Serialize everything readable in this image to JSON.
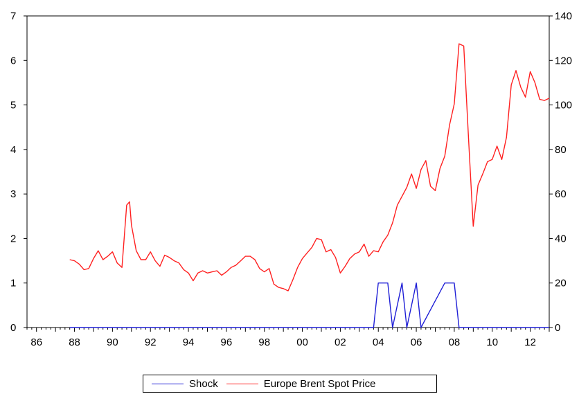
{
  "chart_data": {
    "type": "line",
    "title": "",
    "xlabel": "",
    "ylabel_left": "",
    "ylabel_right": "",
    "x_range": [
      1985.5,
      2013.0
    ],
    "x_tick_labels": [
      "86",
      "88",
      "90",
      "92",
      "94",
      "96",
      "98",
      "00",
      "02",
      "04",
      "06",
      "08",
      "10",
      "12"
    ],
    "x_tick_years": [
      1986,
      1988,
      1990,
      1992,
      1994,
      1996,
      1998,
      2000,
      2002,
      2004,
      2006,
      2008,
      2010,
      2012
    ],
    "y_left": {
      "ticks": [
        "0",
        "1",
        "2",
        "3",
        "4",
        "5",
        "6",
        "7"
      ],
      "range": [
        0,
        7
      ]
    },
    "y_right": {
      "ticks": [
        "0",
        "20",
        "40",
        "60",
        "80",
        "100",
        "120",
        "140"
      ],
      "range": [
        0,
        140
      ]
    },
    "grid": false,
    "legend_position": "bottom-center",
    "series": [
      {
        "name": "Shock",
        "axis": "left",
        "color": "#1f1fd6",
        "points": [
          [
            1987.75,
            0
          ],
          [
            2003.75,
            0
          ],
          [
            2004.0,
            1
          ],
          [
            2004.25,
            1
          ],
          [
            2004.5,
            1
          ],
          [
            2004.75,
            0
          ],
          [
            2005.25,
            1
          ],
          [
            2005.5,
            0
          ],
          [
            2006.0,
            1
          ],
          [
            2006.25,
            0
          ],
          [
            2007.5,
            1
          ],
          [
            2007.75,
            1
          ],
          [
            2008.0,
            1
          ],
          [
            2008.25,
            0
          ],
          [
            2013.0,
            0
          ]
        ]
      },
      {
        "name": "Europe Brent Spot Price",
        "axis": "right",
        "color": "#ff2020",
        "points": [
          [
            1987.75,
            30.5
          ],
          [
            1988.0,
            30.0
          ],
          [
            1988.25,
            28.5
          ],
          [
            1988.5,
            26.0
          ],
          [
            1988.75,
            26.5
          ],
          [
            1989.0,
            31.0
          ],
          [
            1989.25,
            34.5
          ],
          [
            1989.5,
            30.5
          ],
          [
            1989.75,
            32.0
          ],
          [
            1990.0,
            34.0
          ],
          [
            1990.25,
            29.0
          ],
          [
            1990.5,
            27.0
          ],
          [
            1990.75,
            55.0
          ],
          [
            1990.9,
            56.5
          ],
          [
            1991.0,
            46.0
          ],
          [
            1991.25,
            34.5
          ],
          [
            1991.5,
            30.5
          ],
          [
            1991.75,
            30.5
          ],
          [
            1992.0,
            34.0
          ],
          [
            1992.25,
            30.0
          ],
          [
            1992.5,
            27.5
          ],
          [
            1992.75,
            32.5
          ],
          [
            1993.0,
            31.5
          ],
          [
            1993.25,
            30.0
          ],
          [
            1993.5,
            29.0
          ],
          [
            1993.75,
            26.0
          ],
          [
            1994.0,
            24.5
          ],
          [
            1994.25,
            21.0
          ],
          [
            1994.5,
            24.5
          ],
          [
            1994.75,
            25.5
          ],
          [
            1995.0,
            24.5
          ],
          [
            1995.25,
            25.0
          ],
          [
            1995.5,
            25.5
          ],
          [
            1995.75,
            23.5
          ],
          [
            1996.0,
            25.0
          ],
          [
            1996.25,
            27.0
          ],
          [
            1996.5,
            28.0
          ],
          [
            1996.75,
            30.0
          ],
          [
            1997.0,
            32.0
          ],
          [
            1997.25,
            32.0
          ],
          [
            1997.5,
            30.5
          ],
          [
            1997.75,
            26.5
          ],
          [
            1998.0,
            25.0
          ],
          [
            1998.25,
            26.5
          ],
          [
            1998.5,
            19.5
          ],
          [
            1998.75,
            18.0
          ],
          [
            1999.0,
            17.5
          ],
          [
            1999.25,
            16.5
          ],
          [
            1999.5,
            21.5
          ],
          [
            1999.75,
            27.0
          ],
          [
            2000.0,
            31.0
          ],
          [
            2000.25,
            33.5
          ],
          [
            2000.5,
            36.0
          ],
          [
            2000.75,
            40.0
          ],
          [
            2001.0,
            39.5
          ],
          [
            2001.25,
            34.0
          ],
          [
            2001.5,
            35.0
          ],
          [
            2001.75,
            31.5
          ],
          [
            2002.0,
            24.5
          ],
          [
            2002.25,
            27.5
          ],
          [
            2002.5,
            31.0
          ],
          [
            2002.75,
            33.0
          ],
          [
            2003.0,
            34.0
          ],
          [
            2003.25,
            37.5
          ],
          [
            2003.5,
            32.0
          ],
          [
            2003.75,
            34.5
          ],
          [
            2004.0,
            34.0
          ],
          [
            2004.25,
            38.5
          ],
          [
            2004.5,
            41.5
          ],
          [
            2004.75,
            47.0
          ],
          [
            2005.0,
            55.0
          ],
          [
            2005.25,
            59.0
          ],
          [
            2005.5,
            63.0
          ],
          [
            2005.75,
            69.0
          ],
          [
            2006.0,
            62.5
          ],
          [
            2006.25,
            71.0
          ],
          [
            2006.5,
            75.0
          ],
          [
            2006.75,
            63.5
          ],
          [
            2007.0,
            61.5
          ],
          [
            2007.25,
            71.5
          ],
          [
            2007.5,
            77.0
          ],
          [
            2007.75,
            91.0
          ],
          [
            2008.0,
            100.5
          ],
          [
            2008.25,
            127.5
          ],
          [
            2008.5,
            126.5
          ],
          [
            2008.75,
            85.0
          ],
          [
            2009.0,
            45.5
          ],
          [
            2009.25,
            64.0
          ],
          [
            2009.5,
            69.0
          ],
          [
            2009.75,
            74.5
          ],
          [
            2010.0,
            75.5
          ],
          [
            2010.25,
            81.5
          ],
          [
            2010.5,
            75.5
          ],
          [
            2010.75,
            85.5
          ],
          [
            2011.0,
            109.0
          ],
          [
            2011.25,
            115.5
          ],
          [
            2011.5,
            108.0
          ],
          [
            2011.75,
            103.5
          ],
          [
            2012.0,
            115.0
          ],
          [
            2012.25,
            110.0
          ],
          [
            2012.5,
            102.5
          ],
          [
            2012.75,
            102.0
          ],
          [
            2013.0,
            103.0
          ]
        ]
      }
    ]
  }
}
